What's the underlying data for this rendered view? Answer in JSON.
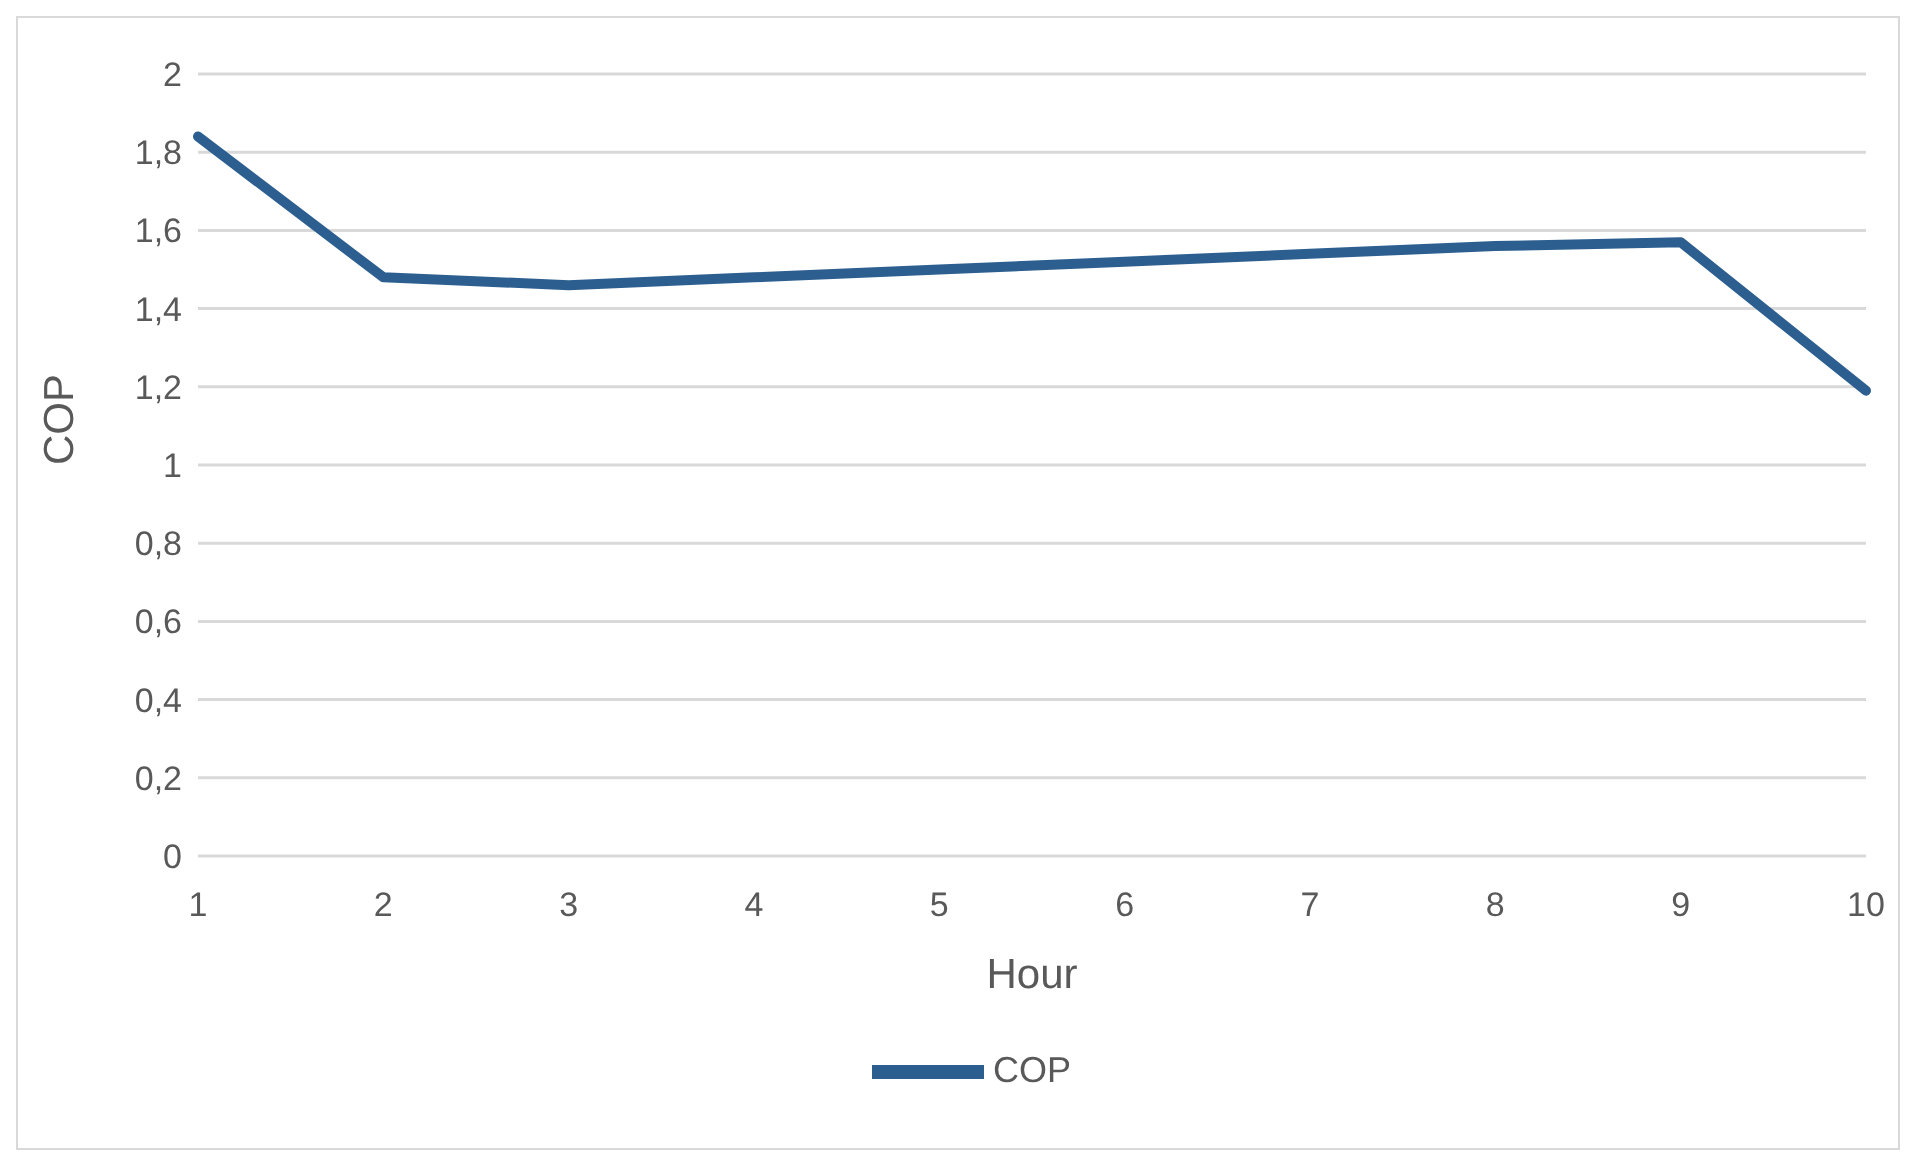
{
  "chart_data": {
    "type": "line",
    "xlabel": "Hour",
    "ylabel": "COP",
    "categories": [
      "1",
      "2",
      "3",
      "4",
      "5",
      "6",
      "7",
      "8",
      "9",
      "10"
    ],
    "series": [
      {
        "name": "COP",
        "color": "#2c5f8f",
        "values": [
          1.84,
          1.48,
          1.46,
          1.48,
          1.5,
          1.52,
          1.54,
          1.56,
          1.57,
          1.19
        ]
      }
    ],
    "ylim": [
      0,
      2
    ],
    "yticks": [
      0,
      {
        "value": 0.2,
        "label": "0,2"
      },
      {
        "value": 0.4,
        "label": "0,4"
      },
      {
        "value": 0.6,
        "label": "0,6"
      },
      {
        "value": 0.8,
        "label": "0,8"
      },
      1,
      {
        "value": 1.2,
        "label": "1,2"
      },
      {
        "value": 1.4,
        "label": "1,4"
      },
      {
        "value": 1.6,
        "label": "1,6"
      },
      {
        "value": 1.8,
        "label": "1,8"
      },
      2
    ],
    "grid": "y",
    "legend": "bottom",
    "marker": "none",
    "line_style": "solid"
  }
}
